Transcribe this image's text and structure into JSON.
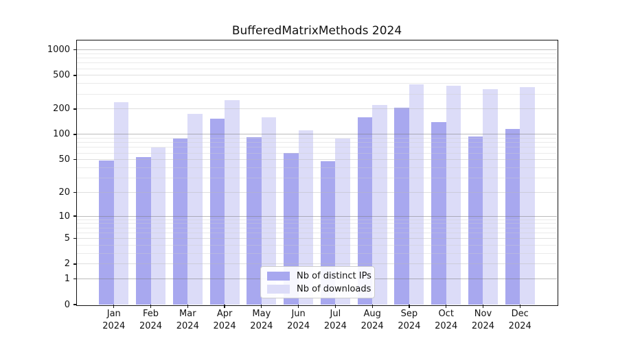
{
  "title": "BufferedMatrixMethods 2024",
  "chart_data": {
    "type": "bar",
    "title": "BufferedMatrixMethods 2024",
    "categories": [
      "Jan",
      "Feb",
      "Mar",
      "Apr",
      "May",
      "Jun",
      "Jul",
      "Aug",
      "Sep",
      "Oct",
      "Nov",
      "Dec"
    ],
    "year_label": "2024",
    "series": [
      {
        "name": "Nb of distinct IPs",
        "color": "#a8a8ef",
        "values": [
          49,
          54,
          90,
          154,
          92,
          60,
          48,
          161,
          208,
          140,
          94,
          117
        ]
      },
      {
        "name": "Nb of downloads",
        "color": "#dcdcf8",
        "values": [
          240,
          70,
          176,
          253,
          160,
          112,
          90,
          222,
          393,
          380,
          342,
          365
        ]
      }
    ],
    "yscale": "log1p",
    "ylim": [
      0,
      1290
    ],
    "y_ticks": [
      0,
      1,
      2,
      5,
      10,
      20,
      50,
      100,
      200,
      500,
      1000
    ],
    "grid": "on",
    "legend_position": "lower center"
  },
  "colors": {
    "bar_ips": "#a8a8ef",
    "bar_downloads": "#dcdcf8",
    "grid_major": "rgba(120,120,120,0.50)",
    "grid_minor_labeled": "rgba(185,185,185,0.48)",
    "grid_minor": "rgba(205,205,205,0.42)",
    "frame": "#111111",
    "text": "#111111",
    "legend_border": "#cccccc",
    "legend_bg": "rgba(255,255,255,0.9)"
  }
}
